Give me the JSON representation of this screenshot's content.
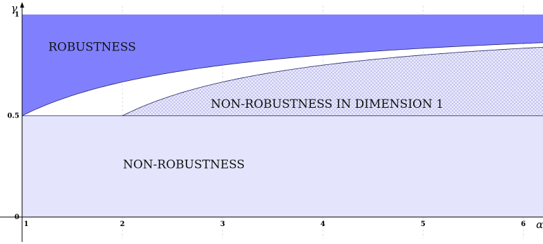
{
  "chart_data": {
    "type": "area",
    "title": "",
    "xlabel": "α",
    "ylabel": "γ",
    "xlim": [
      1,
      6.2
    ],
    "ylim": [
      0,
      1
    ],
    "xticks": [
      1,
      2,
      3,
      4,
      5,
      6
    ],
    "yticks": [
      0,
      0.5,
      1
    ],
    "grid": true,
    "regions": [
      {
        "label": "ROBUSTNESS",
        "color": "#8080ff",
        "lower_curve": "α/(α+1)",
        "upper": 1
      },
      {
        "label": "NON-ROBUSTNESS IN DIMENSION 1",
        "color": "#c8c8f0",
        "pattern": "crosshatch",
        "lower": 0.5,
        "upper_curve": "1 − 1/α, for α ≥ 2"
      },
      {
        "label": "NON-ROBUSTNESS",
        "color": "#e4e4fc",
        "lower": 0,
        "upper": 0.5
      }
    ],
    "curves": [
      {
        "name": "upper-boundary",
        "formula": "α/(α+1)",
        "x": [
          1,
          2,
          3,
          4,
          5,
          6
        ],
        "y": [
          0.5,
          0.667,
          0.75,
          0.8,
          0.833,
          0.857
        ]
      },
      {
        "name": "dimension-1-boundary",
        "formula": "1 − 1/α",
        "x": [
          2,
          3,
          4,
          5,
          6
        ],
        "y": [
          0.5,
          0.667,
          0.75,
          0.8,
          0.833
        ]
      }
    ]
  },
  "colors": {
    "robustness": "#8080ff",
    "non_robustness": "#e4e4fc",
    "hatch": "#b4b4e6",
    "boundary": "#222266"
  }
}
